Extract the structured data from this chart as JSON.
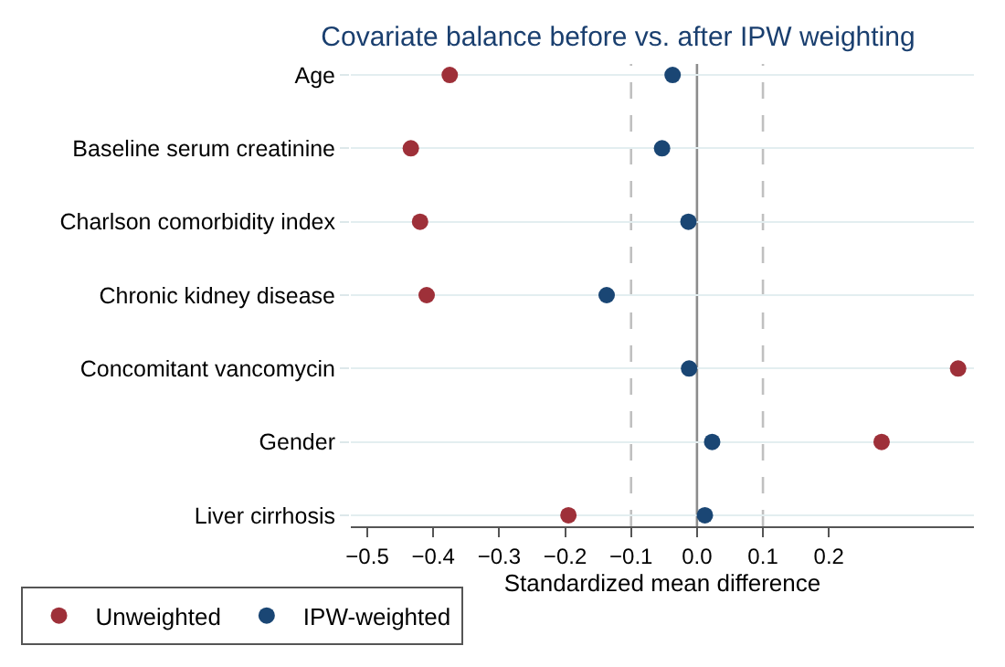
{
  "chart_data": {
    "type": "scatter",
    "title": "Covariate balance before vs. after IPW weighting",
    "xlabel": "Standardized mean difference",
    "categories": [
      "Age",
      "Baseline serum creatinine",
      "Charlson comorbidity index",
      "Chronic kidney disease",
      "Concomitant vancomycin",
      "Gender",
      "Liver cirrhosis"
    ],
    "series": [
      {
        "name": "Unweighted",
        "color": "#9e3039",
        "values": [
          -0.375,
          -0.434,
          -0.42,
          -0.41,
          0.396,
          0.28,
          -0.195
        ]
      },
      {
        "name": "IPW-weighted",
        "color": "#1a4674",
        "values": [
          -0.037,
          -0.053,
          -0.013,
          -0.137,
          -0.012,
          0.023,
          0.012
        ]
      }
    ],
    "orientation": "horizontal",
    "xlim": [
      -0.525,
      0.42
    ],
    "xticks": [
      {
        "value": -0.5,
        "label": "−0.5"
      },
      {
        "value": -0.4,
        "label": "−0.4"
      },
      {
        "value": -0.3,
        "label": "−0.3"
      },
      {
        "value": -0.2,
        "label": "−0.2"
      },
      {
        "value": -0.1,
        "label": "−0.1"
      },
      {
        "value": 0,
        "label": "0.0"
      },
      {
        "value": 0.1,
        "label": "0.1"
      },
      {
        "value": 0.2,
        "label": "0.2"
      }
    ],
    "ref_lines": [
      {
        "axis": "x",
        "value": -0.1,
        "color": "#c0c0c0",
        "line_style": "dashed"
      },
      {
        "axis": "x",
        "value": 0,
        "color": "#8c8c8c",
        "line_style": "solid"
      },
      {
        "axis": "x",
        "value": 0.1,
        "color": "#c0c0c0",
        "line_style": "dashed"
      }
    ],
    "grid": "y",
    "legend": "bottom left",
    "marker": "circle"
  }
}
